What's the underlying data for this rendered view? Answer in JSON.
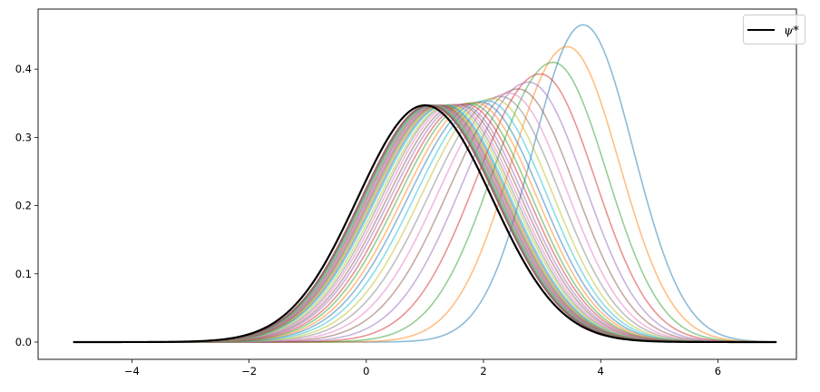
{
  "chart_data": {
    "type": "line",
    "title": "",
    "xlabel": "",
    "ylabel": "",
    "xlim": [
      -5.6,
      7.34
    ],
    "ylim": [
      -0.0253,
      0.488
    ],
    "x_range": [
      -5,
      7
    ],
    "xticks": [
      "−4",
      "−2",
      "0",
      "2",
      "4",
      "6"
    ],
    "xtick_values": [
      -4,
      -2,
      0,
      2,
      4,
      6
    ],
    "yticks": [
      "0.0",
      "0.1",
      "0.2",
      "0.3",
      "0.4"
    ],
    "ytick_values": [
      0,
      0.1,
      0.2,
      0.3,
      0.4
    ],
    "grid": false,
    "legend": {
      "placement": "top-right",
      "entries": [
        {
          "label": "ψ*",
          "color": "#000000"
        }
      ]
    },
    "colors": [
      "#1f77b4",
      "#ff7f0e",
      "#2ca02c",
      "#d62728",
      "#9467bd",
      "#8c564b",
      "#e377c2",
      "#7f7f7f",
      "#bcbd22",
      "#17becf"
    ],
    "series_alpha": 0.5,
    "target": {
      "name": "ψ*",
      "peak_x": 1.0,
      "peak_y": 0.347,
      "color": "#000000"
    },
    "iterate_peaks": {
      "peak_x": [
        3.7,
        3.43,
        3.19,
        2.97,
        2.77,
        2.59,
        2.43,
        2.29,
        2.16,
        2.05,
        1.94,
        1.85,
        1.76,
        1.69,
        1.62,
        1.56,
        1.5,
        1.45,
        1.41,
        1.36,
        1.33,
        1.3,
        1.27,
        1.24,
        1.22,
        1.19,
        1.17,
        1.16,
        1.14,
        1.13,
        1.11,
        1.1,
        1.09,
        1.08,
        1.08,
        1.07
      ],
      "peak_y": [
        0.465,
        0.433,
        0.41,
        0.393,
        0.381,
        0.371,
        0.365,
        0.36,
        0.357,
        0.354,
        0.352,
        0.351,
        0.35,
        0.349,
        0.348,
        0.348,
        0.348,
        0.348,
        0.347,
        0.347,
        0.347,
        0.347,
        0.347,
        0.347,
        0.347,
        0.347,
        0.347,
        0.347,
        0.347,
        0.347,
        0.347,
        0.347,
        0.347,
        0.347,
        0.347,
        0.347
      ]
    }
  }
}
